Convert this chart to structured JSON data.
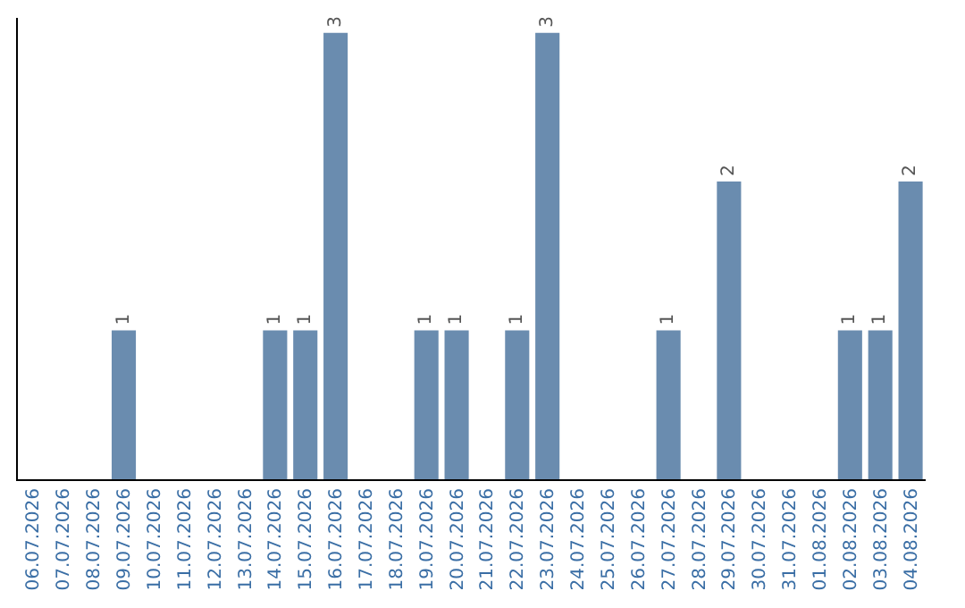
{
  "chart_data": {
    "type": "bar",
    "categories": [
      "06.07.2026",
      "07.07.2026",
      "08.07.2026",
      "09.07.2026",
      "10.07.2026",
      "11.07.2026",
      "12.07.2026",
      "13.07.2026",
      "14.07.2026",
      "15.07.2026",
      "16.07.2026",
      "17.07.2026",
      "18.07.2026",
      "19.07.2026",
      "20.07.2026",
      "21.07.2026",
      "22.07.2026",
      "23.07.2026",
      "24.07.2026",
      "25.07.2026",
      "26.07.2026",
      "27.07.2026",
      "28.07.2026",
      "29.07.2026",
      "30.07.2026",
      "31.07.2026",
      "01.08.2026",
      "02.08.2026",
      "03.08.2026",
      "04.08.2026"
    ],
    "values": [
      0,
      0,
      0,
      1,
      0,
      0,
      0,
      0,
      1,
      1,
      3,
      0,
      0,
      1,
      1,
      0,
      1,
      3,
      0,
      0,
      0,
      1,
      0,
      2,
      0,
      0,
      0,
      1,
      1,
      2
    ],
    "value_labels": [
      null,
      null,
      null,
      "1",
      null,
      null,
      null,
      null,
      "1",
      "1",
      "3",
      null,
      null,
      "1",
      "1",
      null,
      "1",
      "3",
      null,
      null,
      null,
      "1",
      null,
      "2",
      null,
      null,
      null,
      "1",
      "1",
      "2"
    ],
    "color": "#6a8caf",
    "ylim": [
      0,
      3.1
    ],
    "tick_labels": "x"
  }
}
